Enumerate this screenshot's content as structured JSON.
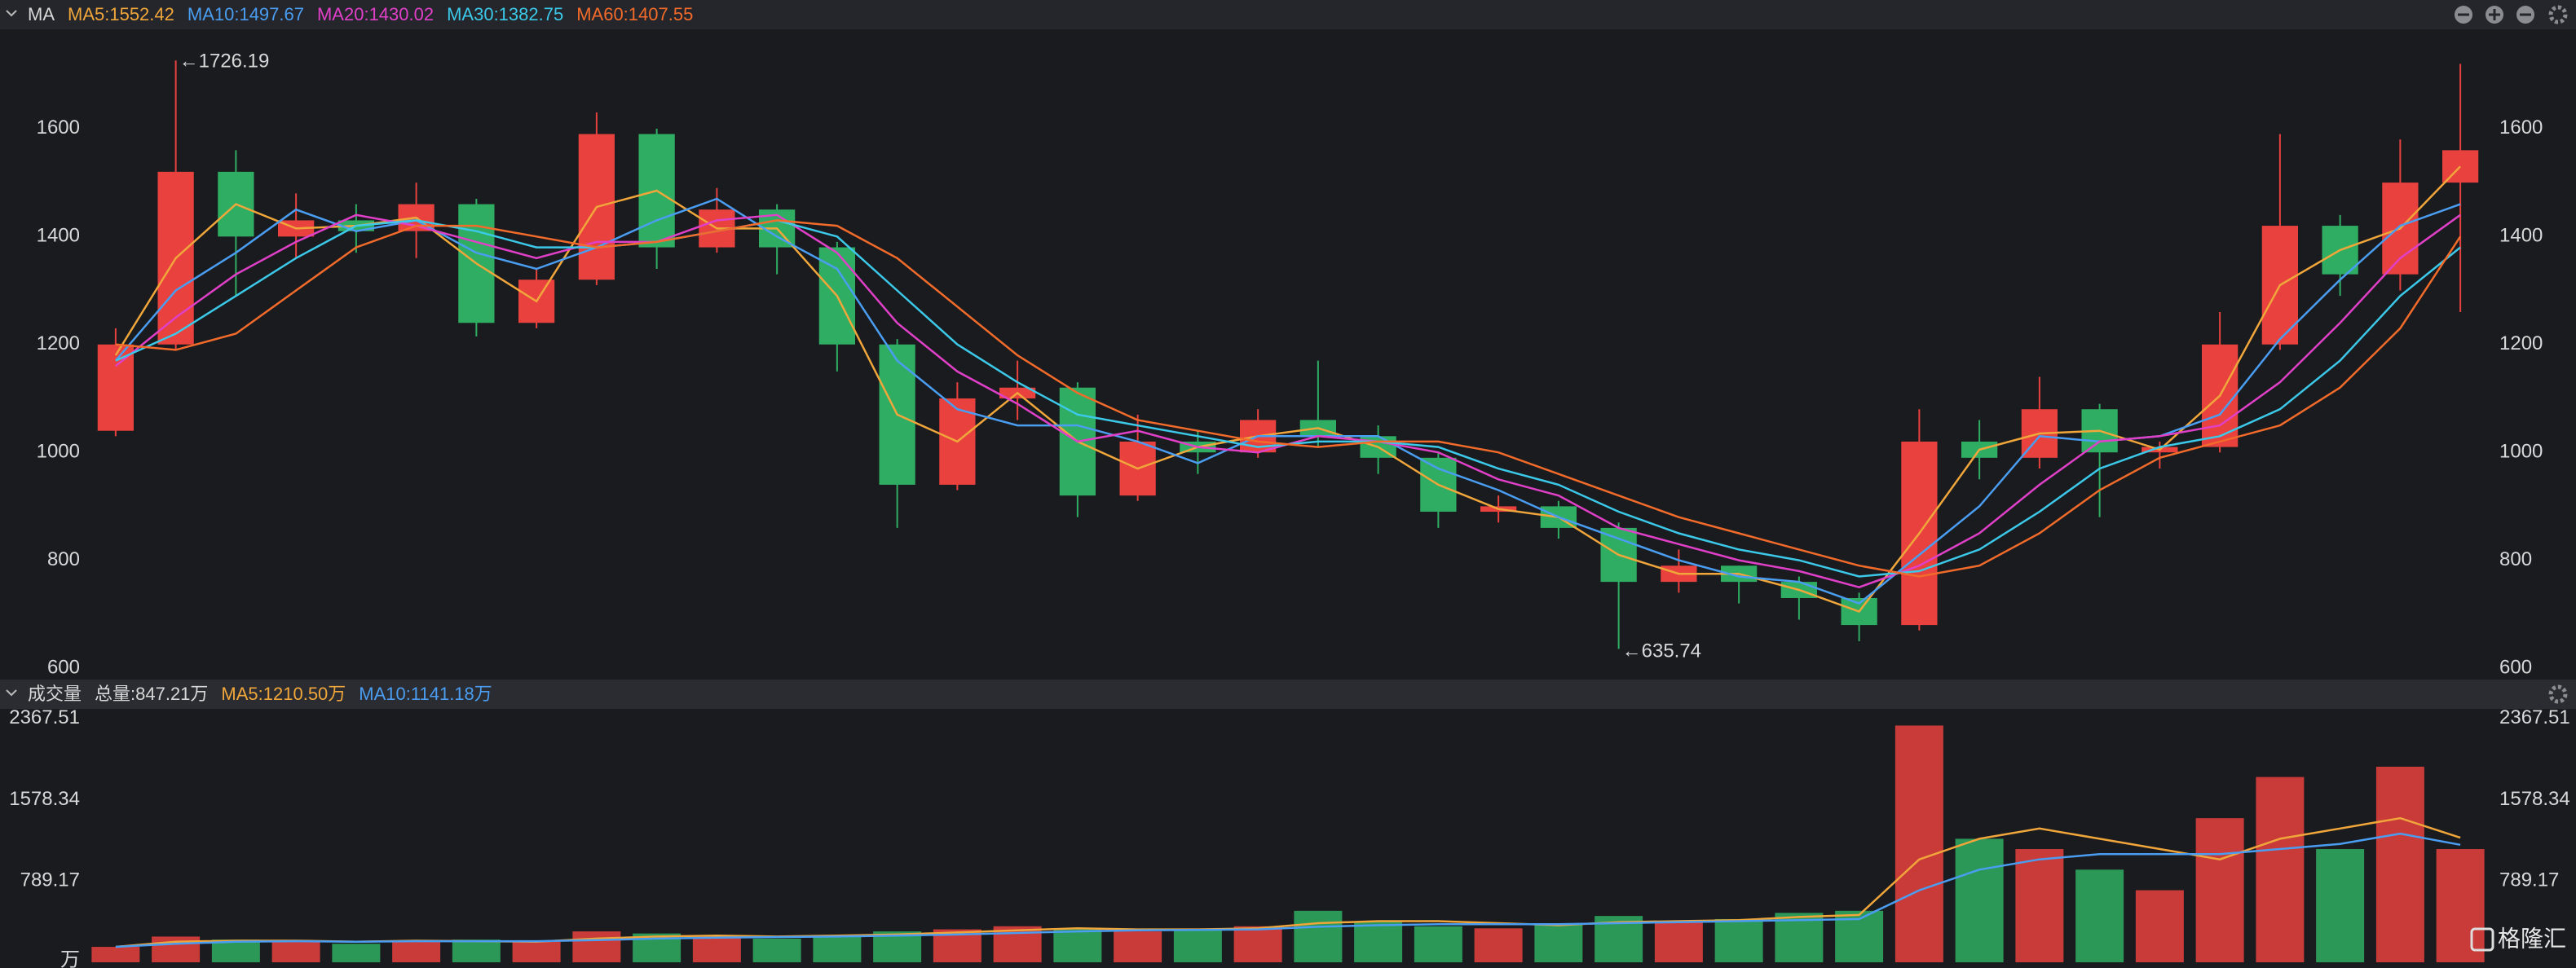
{
  "chart_data": [
    {
      "type": "candlestick",
      "title": "MA",
      "up_color": "#e8413e",
      "down_color": "#2fae63",
      "open": [
        1040,
        1200,
        1520,
        1400,
        1430,
        1410,
        1460,
        1240,
        1320,
        1590,
        1380,
        1450,
        1380,
        1200,
        940,
        1100,
        1120,
        920,
        1020,
        1000,
        1060,
        1030,
        990,
        890,
        900,
        860,
        760,
        790,
        760,
        730,
        680,
        1020,
        990,
        1080,
        1000,
        1010,
        1200,
        1420,
        1330,
        1500
      ],
      "high": [
        1230,
        1726.19,
        1560,
        1480,
        1460,
        1500,
        1470,
        1340,
        1630,
        1600,
        1490,
        1460,
        1390,
        1210,
        1130,
        1170,
        1130,
        1070,
        1040,
        1080,
        1170,
        1050,
        1000,
        920,
        910,
        870,
        820,
        790,
        770,
        740,
        1080,
        1060,
        1140,
        1090,
        1020,
        1260,
        1590,
        1440,
        1580,
        1720
      ],
      "low": [
        1030,
        1190,
        1290,
        1360,
        1370,
        1360,
        1215,
        1230,
        1310,
        1340,
        1370,
        1330,
        1150,
        860,
        930,
        1060,
        880,
        910,
        960,
        990,
        1010,
        960,
        860,
        870,
        840,
        635.74,
        740,
        720,
        690,
        650,
        670,
        950,
        970,
        880,
        970,
        1000,
        1190,
        1290,
        1300,
        1260
      ],
      "close": [
        1200,
        1520,
        1400,
        1430,
        1410,
        1460,
        1240,
        1320,
        1590,
        1380,
        1450,
        1380,
        1200,
        940,
        1100,
        1120,
        920,
        1020,
        1000,
        1060,
        1030,
        990,
        890,
        900,
        860,
        760,
        790,
        760,
        730,
        680,
        1020,
        990,
        1080,
        1000,
        1010,
        1200,
        1420,
        1330,
        1500,
        1560
      ],
      "series": [
        {
          "name": "MA5:1552.42",
          "color": "#f0a63a",
          "values": [
            1180,
            1360,
            1460,
            1415,
            1420,
            1435,
            1350,
            1280,
            1455,
            1485,
            1415,
            1415,
            1290,
            1070,
            1020,
            1110,
            1020,
            970,
            1010,
            1030,
            1045,
            1010,
            940,
            895,
            880,
            810,
            775,
            775,
            745,
            705,
            850,
            1005,
            1035,
            1040,
            1005,
            1105,
            1310,
            1375,
            1415,
            1530
          ]
        },
        {
          "name": "MA10:1497.67",
          "color": "#4a9df0",
          "values": [
            1170,
            1300,
            1370,
            1450,
            1410,
            1430,
            1370,
            1340,
            1380,
            1430,
            1470,
            1400,
            1340,
            1170,
            1080,
            1050,
            1050,
            1020,
            980,
            1030,
            1030,
            1030,
            970,
            930,
            880,
            840,
            800,
            770,
            760,
            720,
            810,
            900,
            1030,
            1020,
            1030,
            1070,
            1210,
            1320,
            1420,
            1460
          ]
        },
        {
          "name": "MA20:1430.02",
          "color": "#e040c8",
          "values": [
            1160,
            1250,
            1330,
            1390,
            1440,
            1420,
            1390,
            1360,
            1390,
            1390,
            1430,
            1440,
            1370,
            1240,
            1150,
            1090,
            1020,
            1040,
            1010,
            1000,
            1030,
            1020,
            1000,
            950,
            920,
            860,
            830,
            800,
            780,
            750,
            790,
            850,
            940,
            1020,
            1030,
            1050,
            1130,
            1240,
            1360,
            1440
          ]
        },
        {
          "name": "MA30:1382.75",
          "color": "#3cc8e8",
          "values": [
            1170,
            1220,
            1290,
            1360,
            1420,
            1430,
            1410,
            1380,
            1380,
            1390,
            1410,
            1430,
            1400,
            1300,
            1200,
            1130,
            1070,
            1050,
            1030,
            1010,
            1020,
            1020,
            1010,
            970,
            940,
            890,
            850,
            820,
            800,
            770,
            780,
            820,
            890,
            970,
            1010,
            1030,
            1080,
            1170,
            1290,
            1380
          ]
        },
        {
          "name": "MA60:1407.55",
          "color": "#f26b2a",
          "values": [
            1200,
            1190,
            1220,
            1300,
            1380,
            1420,
            1420,
            1400,
            1380,
            1390,
            1410,
            1430,
            1420,
            1360,
            1270,
            1180,
            1110,
            1060,
            1040,
            1020,
            1010,
            1020,
            1020,
            1000,
            960,
            920,
            880,
            850,
            820,
            790,
            770,
            790,
            850,
            930,
            990,
            1020,
            1050,
            1120,
            1230,
            1400
          ]
        }
      ],
      "annotations": [
        "←1726.19",
        "←635.74"
      ],
      "ylim": [
        585,
        1778
      ],
      "yticks": [
        600,
        800,
        1000,
        1200,
        1400,
        1600
      ],
      "grid": false
    },
    {
      "type": "bar",
      "title": "成交量",
      "subtitle": "总量:847.21万",
      "subtitle_color": "#e8413e",
      "watermark": "格隆汇",
      "values": [
        150,
        250,
        220,
        200,
        180,
        200,
        220,
        200,
        300,
        280,
        250,
        230,
        260,
        300,
        320,
        350,
        330,
        300,
        320,
        350,
        500,
        400,
        350,
        330,
        380,
        450,
        400,
        420,
        480,
        500,
        2300,
        1200,
        1100,
        900,
        700,
        1400,
        1800,
        1100,
        1900,
        1100
      ],
      "series": [
        {
          "name": "MA5:1210.50万",
          "color": "#f0a63a",
          "values": [
            150,
            200,
            210,
            210,
            200,
            210,
            205,
            200,
            230,
            250,
            260,
            250,
            260,
            270,
            290,
            310,
            330,
            320,
            320,
            330,
            380,
            400,
            400,
            380,
            360,
            390,
            400,
            410,
            440,
            460,
            1000,
            1200,
            1300,
            1200,
            1100,
            1000,
            1200,
            1300,
            1400,
            1210.5
          ]
        },
        {
          "name": "MA10:1141.18万",
          "color": "#4a9df0",
          "values": [
            150,
            180,
            200,
            205,
            200,
            205,
            205,
            205,
            215,
            230,
            240,
            245,
            250,
            260,
            270,
            285,
            300,
            310,
            315,
            320,
            345,
            360,
            370,
            370,
            370,
            380,
            390,
            400,
            410,
            420,
            700,
            900,
            1000,
            1050,
            1050,
            1050,
            1100,
            1150,
            1250,
            1141.18
          ]
        }
      ],
      "ylim": [
        0,
        2430
      ],
      "yticks": [
        {
          "value": 0,
          "label": "万"
        },
        789.17,
        1578.34,
        2367.51
      ],
      "grid": false
    }
  ]
}
